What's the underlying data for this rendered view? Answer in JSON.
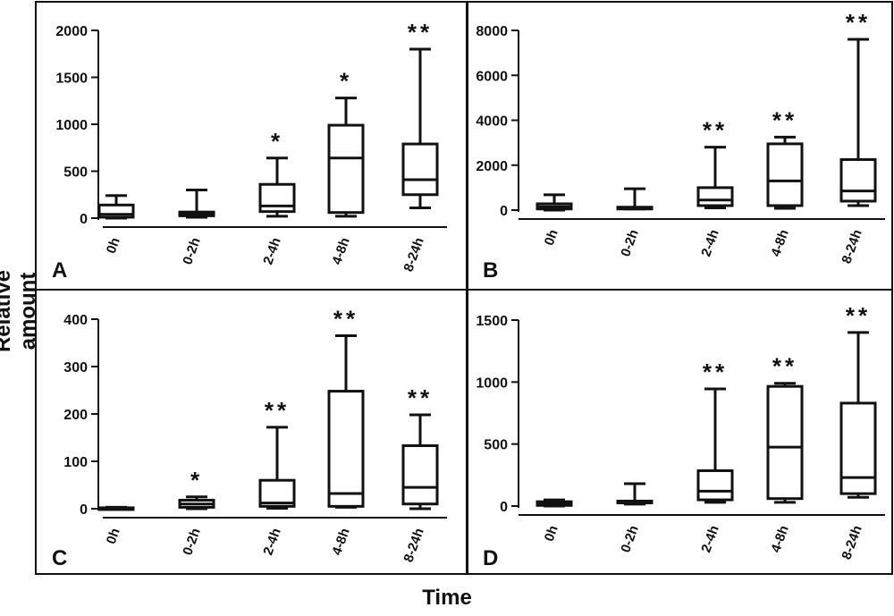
{
  "figure": {
    "ylabel": "Relative amount",
    "xlabel": "Time"
  },
  "chart_data": [
    {
      "type": "box",
      "panel": "A",
      "categories": [
        "0h",
        "0-2h",
        "2-4h",
        "4-8h",
        "8-24h"
      ],
      "ylim": [
        0,
        2000
      ],
      "yticks": [
        0,
        500,
        1000,
        1500,
        2000
      ],
      "boxes": [
        {
          "min": 0,
          "q1": 10,
          "median": 40,
          "q3": 140,
          "max": 240
        },
        {
          "min": 10,
          "q1": 25,
          "median": 50,
          "q3": 65,
          "max": 300
        },
        {
          "min": 20,
          "q1": 70,
          "median": 130,
          "q3": 360,
          "max": 640
        },
        {
          "min": 20,
          "q1": 60,
          "median": 640,
          "q3": 990,
          "max": 1280
        },
        {
          "min": 110,
          "q1": 250,
          "median": 410,
          "q3": 790,
          "max": 1800
        }
      ],
      "annotations": [
        "",
        "",
        "*",
        "*",
        "**"
      ]
    },
    {
      "type": "box",
      "panel": "B",
      "categories": [
        "0h",
        "0-2h",
        "2-4h",
        "4-8h",
        "8-24h"
      ],
      "ylim": [
        0,
        8000
      ],
      "yticks": [
        0,
        2000,
        4000,
        6000,
        8000
      ],
      "boxes": [
        {
          "min": 0,
          "q1": 50,
          "median": 150,
          "q3": 280,
          "max": 680
        },
        {
          "min": 50,
          "q1": 80,
          "median": 100,
          "q3": 130,
          "max": 950
        },
        {
          "min": 100,
          "q1": 200,
          "median": 450,
          "q3": 1000,
          "max": 2800
        },
        {
          "min": 80,
          "q1": 200,
          "median": 1300,
          "q3": 2950,
          "max": 3250
        },
        {
          "min": 200,
          "q1": 400,
          "median": 850,
          "q3": 2250,
          "max": 7600
        }
      ],
      "annotations": [
        "",
        "",
        "**",
        "**",
        "**"
      ]
    },
    {
      "type": "box",
      "panel": "C",
      "categories": [
        "0h",
        "0-2h",
        "2-4h",
        "4-8h",
        "8-24h"
      ],
      "ylim": [
        0,
        400
      ],
      "yticks": [
        0,
        100,
        200,
        300,
        400
      ],
      "boxes": [
        {
          "min": 0,
          "q1": 0,
          "median": 1,
          "q3": 2,
          "max": 3
        },
        {
          "min": 0,
          "q1": 3,
          "median": 10,
          "q3": 18,
          "max": 25
        },
        {
          "min": 1,
          "q1": 5,
          "median": 12,
          "q3": 60,
          "max": 172
        },
        {
          "min": 3,
          "q1": 5,
          "median": 32,
          "q3": 248,
          "max": 365
        },
        {
          "min": 0,
          "q1": 10,
          "median": 45,
          "q3": 133,
          "max": 198
        }
      ],
      "annotations": [
        "",
        "*",
        "**",
        "**",
        "**"
      ]
    },
    {
      "type": "box",
      "panel": "D",
      "categories": [
        "0h",
        "0-2h",
        "2-4h",
        "4-8h",
        "8-24h"
      ],
      "ylim": [
        0,
        1500
      ],
      "yticks": [
        0,
        500,
        1000,
        1500
      ],
      "boxes": [
        {
          "min": 0,
          "q1": 5,
          "median": 20,
          "q3": 35,
          "max": 50
        },
        {
          "min": 15,
          "q1": 25,
          "median": 30,
          "q3": 40,
          "max": 180
        },
        {
          "min": 30,
          "q1": 50,
          "median": 120,
          "q3": 285,
          "max": 945
        },
        {
          "min": 30,
          "q1": 60,
          "median": 475,
          "q3": 965,
          "max": 990
        },
        {
          "min": 70,
          "q1": 100,
          "median": 230,
          "q3": 830,
          "max": 1400
        }
      ],
      "annotations": [
        "",
        "",
        "**",
        "**",
        "**"
      ]
    }
  ]
}
